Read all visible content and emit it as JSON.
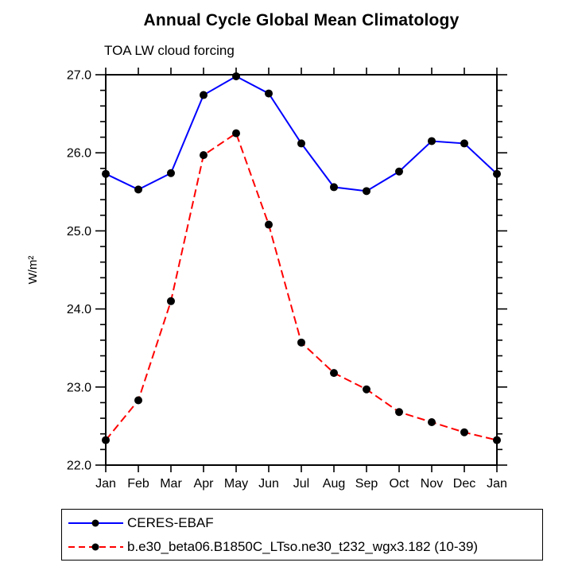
{
  "header": {
    "title": "Annual Cycle Global Mean Climatology",
    "subtitle": "TOA LW cloud forcing"
  },
  "chart_data": {
    "type": "line",
    "title": "Annual Cycle Global Mean Climatology",
    "subtitle": "TOA LW cloud forcing",
    "xlabel": "",
    "ylabel": "W/m²",
    "categories": [
      "Jan",
      "Feb",
      "Mar",
      "Apr",
      "May",
      "Jun",
      "Jul",
      "Aug",
      "Sep",
      "Oct",
      "Nov",
      "Dec",
      "Jan"
    ],
    "ylim": [
      22.0,
      27.0
    ],
    "ytick_major": 1.0,
    "ytick_minor": 0.2,
    "ytick_labels": [
      "22.0",
      "23.0",
      "24.0",
      "25.0",
      "26.0",
      "27.0"
    ],
    "grid": false,
    "legend_position": "bottom-left-box",
    "marker": "filled-circle",
    "marker_color": "#000000",
    "axis_color": "#000000",
    "series": [
      {
        "name": "CERES-EBAF",
        "color": "#0000ff",
        "line_style": "solid",
        "values": [
          25.73,
          25.53,
          25.74,
          26.74,
          26.98,
          26.76,
          26.12,
          25.56,
          25.51,
          25.76,
          26.15,
          26.12,
          25.73
        ]
      },
      {
        "name": "b.e30_beta06.B1850C_LTso.ne30_t232_wgx3.182 (10-39)",
        "color": "#ff0000",
        "line_style": "dashed",
        "values": [
          22.32,
          22.83,
          24.1,
          25.97,
          26.25,
          25.08,
          23.57,
          23.18,
          22.97,
          22.68,
          22.55,
          22.42,
          22.32
        ]
      }
    ]
  },
  "legend": {
    "items": [
      {
        "label": "CERES-EBAF"
      },
      {
        "label": "b.e30_beta06.B1850C_LTso.ne30_t232_wgx3.182 (10-39)"
      }
    ]
  }
}
